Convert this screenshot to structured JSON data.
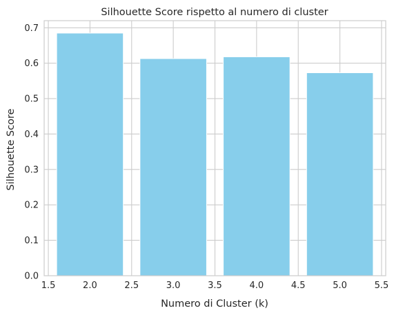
{
  "chart_data": {
    "type": "bar",
    "title": "Silhouette Score rispetto al numero di cluster",
    "xlabel": "Numero di Cluster (k)",
    "ylabel": "Silhouette Score",
    "x": [
      2,
      3,
      4,
      5
    ],
    "values": [
      0.685,
      0.613,
      0.618,
      0.573
    ],
    "bar_width": 0.8,
    "xlim": [
      1.45,
      5.55
    ],
    "ylim": [
      0,
      0.72
    ],
    "xticks": [
      "1.5",
      "2.0",
      "2.5",
      "3.0",
      "3.5",
      "4.0",
      "4.5",
      "5.0",
      "5.5"
    ],
    "yticks": [
      "0.0",
      "0.1",
      "0.2",
      "0.3",
      "0.4",
      "0.5",
      "0.6",
      "0.7"
    ],
    "grid": true,
    "colors": {
      "bar": "#87ceeb",
      "grid": "#cccccc",
      "spine": "#cccccc",
      "text": "#262626",
      "background": "#ffffff"
    }
  }
}
